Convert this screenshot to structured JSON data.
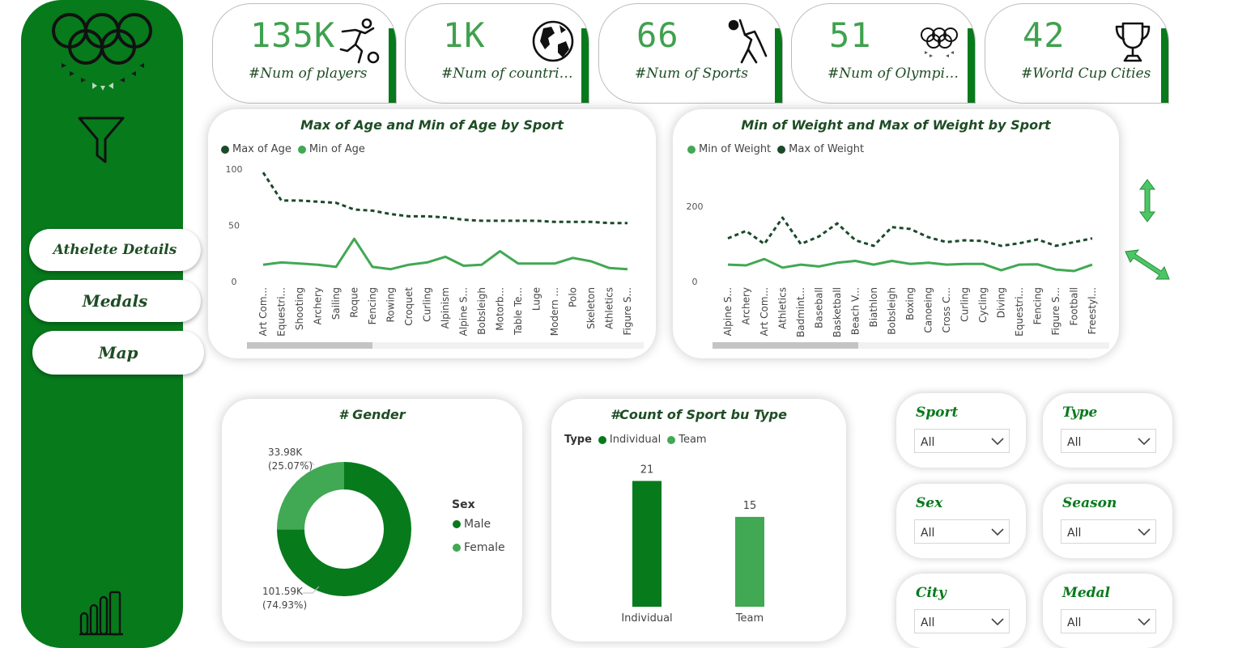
{
  "sidebar": {
    "nav": [
      {
        "label": "Athelete Details"
      },
      {
        "label": "Medals"
      },
      {
        "label": "Map"
      }
    ]
  },
  "kpis": [
    {
      "value": "135K",
      "label": "#Num of players",
      "icon": "soccer-player-icon"
    },
    {
      "value": "1K",
      "label": "#Num of countries in…",
      "icon": "globe-icon"
    },
    {
      "value": "66",
      "label": "#Num of Sports",
      "icon": "athlete-icon"
    },
    {
      "value": "51",
      "label": "#Num of Olympiads",
      "icon": "olympic-rings-icon"
    },
    {
      "value": "42",
      "label": "#World Cup Cities",
      "icon": "trophy-icon"
    }
  ],
  "age_chart": {
    "title": "Max of Age and Min of Age by Sport",
    "legend": [
      "Max of Age",
      "Min of Age"
    ]
  },
  "weight_chart": {
    "title": "Min of Weight and Max of Weight by Sport",
    "legend": [
      "Min of Weight",
      "Max of Weight"
    ]
  },
  "gender_chart": {
    "title": "# Gender",
    "legend_title": "Sex",
    "legend": [
      "Male",
      "Female"
    ],
    "female_label": "33.98K",
    "female_pct": "(25.07%)",
    "male_label": "101.59K",
    "male_pct": "(74.93%)"
  },
  "type_chart": {
    "title": "#Count of Sport bu Type",
    "legend_title": "Type",
    "legend": [
      "Individual",
      "Team"
    ]
  },
  "slicers": [
    {
      "title": "Sport",
      "value": "All"
    },
    {
      "title": "Type",
      "value": "All"
    },
    {
      "title": "Sex",
      "value": "All"
    },
    {
      "title": "Season",
      "value": "All"
    },
    {
      "title": "City",
      "value": "All"
    },
    {
      "title": "Medal",
      "value": "All"
    }
  ],
  "colors": {
    "dark_green": "#077a1c",
    "mid_green": "#41a853",
    "deep_green": "#1e4d24",
    "line_dark": "#1b4a2b"
  },
  "chart_data": [
    {
      "type": "line",
      "title": "Max of Age and Min of Age by Sport",
      "categories": [
        "Art Com...",
        "Equestri...",
        "Shooting",
        "Archery",
        "Sailing",
        "Roque",
        "Fencing",
        "Rowing",
        "Croquet",
        "Curling",
        "Alpinism",
        "Alpine S...",
        "Bobsleigh",
        "Motorb...",
        "Table Te...",
        "Luge",
        "Modern ...",
        "Polo",
        "Skeleton",
        "Athletics",
        "Figure S..."
      ],
      "series": [
        {
          "name": "Max of Age",
          "values": [
            97,
            72,
            72,
            71,
            70,
            64,
            63,
            60,
            58,
            58,
            57,
            55,
            54,
            54,
            54,
            54,
            53,
            53,
            53,
            52,
            52
          ]
        },
        {
          "name": "Min of Age",
          "values": [
            15,
            17,
            16,
            15,
            13,
            38,
            13,
            11,
            15,
            17,
            22,
            14,
            15,
            27,
            16,
            16,
            16,
            21,
            18,
            12,
            11
          ]
        }
      ],
      "y_ticks": [
        0,
        50,
        100
      ],
      "ylim": [
        0,
        100
      ],
      "scrollbar": true
    },
    {
      "type": "line",
      "title": "Min of Weight and Max of Weight by Sport",
      "categories": [
        "Alpine S...",
        "Archery",
        "Art Com...",
        "Athletics",
        "Badmint...",
        "Baseball",
        "Basketball",
        "Beach V...",
        "Biathlon",
        "Bobsleigh",
        "Boxing",
        "Canoeing",
        "Cross C...",
        "Curling",
        "Cycling",
        "Diving",
        "Equestri...",
        "Fencing",
        "Figure S...",
        "Football",
        "Freestyl..."
      ],
      "series": [
        {
          "name": "Min of Weight",
          "values": [
            45,
            43,
            60,
            37,
            45,
            40,
            50,
            55,
            45,
            55,
            47,
            50,
            45,
            47,
            47,
            30,
            45,
            46,
            32,
            28,
            45
          ]
        },
        {
          "name": "Max of Weight",
          "values": [
            115,
            135,
            100,
            170,
            100,
            120,
            155,
            110,
            95,
            145,
            140,
            118,
            105,
            110,
            108,
            95,
            102,
            112,
            95,
            105,
            115
          ]
        }
      ],
      "y_ticks": [
        0,
        200
      ],
      "ylim": [
        0,
        250
      ],
      "scrollbar": true
    },
    {
      "type": "pie",
      "title": "# Gender",
      "labels": [
        "Male",
        "Female"
      ],
      "values": [
        101590,
        33980
      ],
      "percent": [
        74.93,
        25.07
      ]
    },
    {
      "type": "bar",
      "title": "#Count of Sport bu Type",
      "categories": [
        "Individual",
        "Team"
      ],
      "values": [
        21,
        15
      ],
      "ylim": [
        0,
        25
      ]
    }
  ]
}
